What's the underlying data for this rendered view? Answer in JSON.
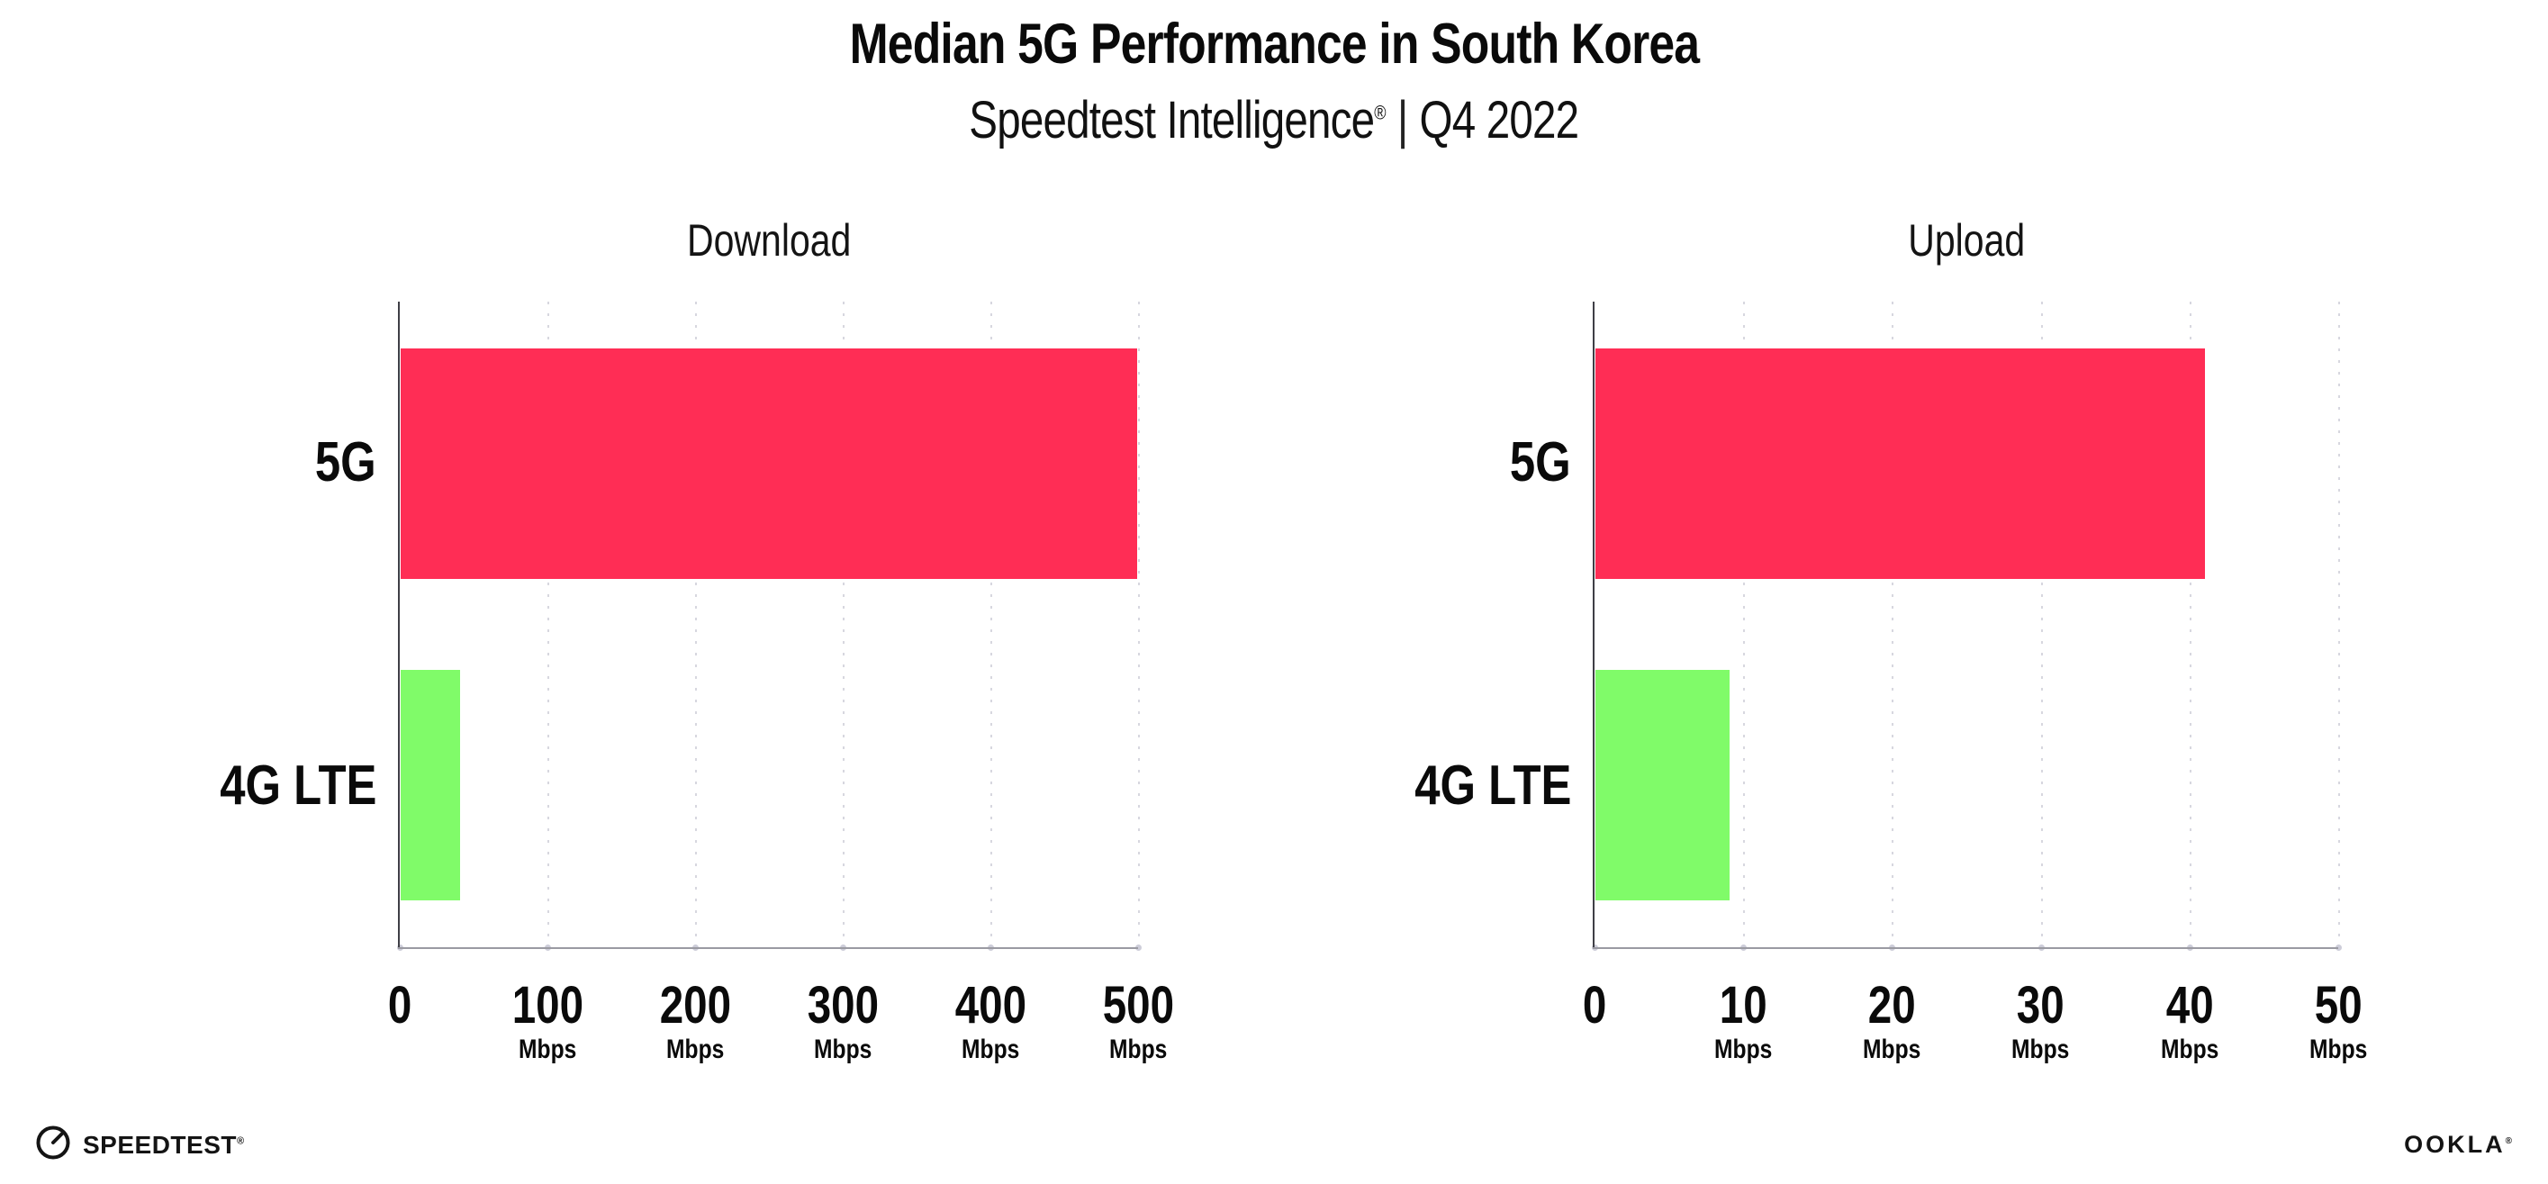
{
  "title": "Median 5G Performance in South Korea",
  "subtitle": {
    "brand": "Speedtest Intelligence",
    "reg_mark": "®",
    "separator": "|",
    "period": "Q4 2022"
  },
  "colors": {
    "bar_5g": "#ff2d55",
    "bar_4g": "#80fb69",
    "gridline": "#d7d7df",
    "axis_y": "#3f3f46",
    "axis_x": "#9a9aa2",
    "text": "#0d0d0d"
  },
  "chart_data": [
    {
      "type": "bar",
      "orientation": "horizontal",
      "title": "Download",
      "categories": [
        "5G",
        "4G LTE"
      ],
      "values": [
        499,
        40
      ],
      "unit": "Mbps",
      "xlim": [
        0,
        500
      ],
      "xticks": [
        0,
        100,
        200,
        300,
        400,
        500
      ],
      "bar_colors": [
        "#ff2d55",
        "#80fb69"
      ],
      "grid": "vertical-dotted",
      "legend": "none"
    },
    {
      "type": "bar",
      "orientation": "horizontal",
      "title": "Upload",
      "categories": [
        "5G",
        "4G LTE"
      ],
      "values": [
        41,
        9
      ],
      "unit": "Mbps",
      "xlim": [
        0,
        50
      ],
      "xticks": [
        0,
        10,
        20,
        30,
        40,
        50
      ],
      "bar_colors": [
        "#ff2d55",
        "#80fb69"
      ],
      "grid": "vertical-dotted",
      "legend": "none"
    }
  ],
  "footer": {
    "speedtest_logo": "SPEEDTEST",
    "speedtest_mark": "®",
    "ookla_logo": "OOKLA",
    "ookla_mark": "®"
  }
}
